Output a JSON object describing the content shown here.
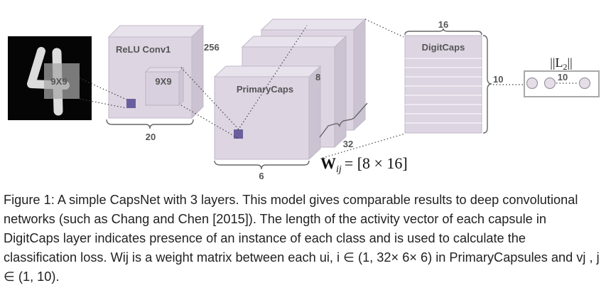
{
  "diagram": {
    "input_patch_label": "9X9",
    "conv1": {
      "name": "ReLU Conv1",
      "depth": "256",
      "width": "20",
      "kernel_label": "9X9"
    },
    "primarycaps": {
      "name": "PrimaryCaps",
      "depth": "8",
      "count": "32",
      "width": "6"
    },
    "digitcaps": {
      "name": "DigitCaps",
      "dim": "16",
      "count": "10"
    },
    "norm": {
      "base": "||L",
      "subscript": "2",
      "close": "||",
      "count": "10"
    },
    "weight": {
      "symbol": "W",
      "subscript": "ij",
      "rhs": "= [8 × 16]"
    },
    "colors": {
      "layer_fill": "#ddd5e2",
      "layer_side": "#cbc2d2",
      "layer_top": "#e8e2ec",
      "patch": "#6a5f9e",
      "input_bg": "#050505"
    }
  },
  "caption": "Figure 1: A simple CapsNet with 3 layers. This model gives comparable results to deep convolutional networks (such as Chang and Chen [2015]). The length of the activity vector of each capsule in DigitCaps layer indicates presence of an instance of each class and is used to calculate the classification loss. Wij is a weight matrix between each ui, i ∈ (1, 32× 6× 6) in PrimaryCapsules and vj , j ∈ (1, 10)."
}
